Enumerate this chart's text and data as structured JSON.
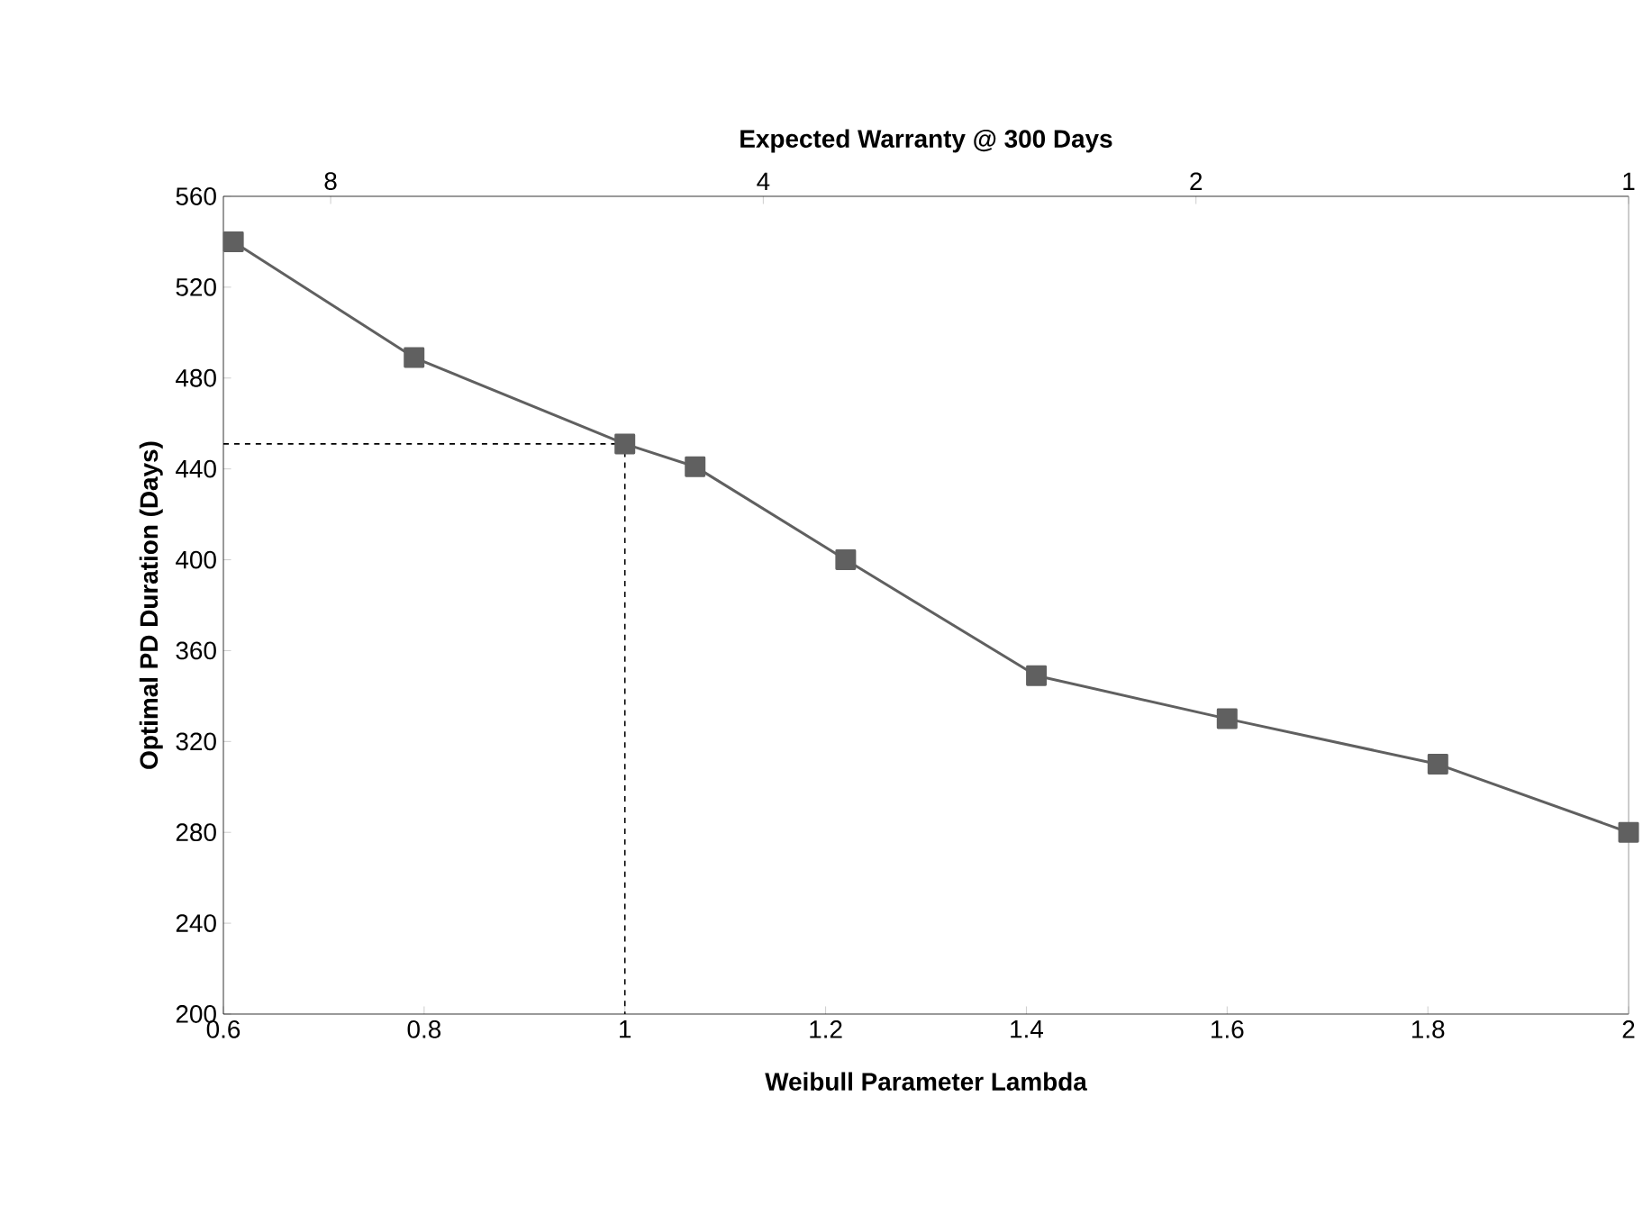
{
  "chart_data": {
    "type": "line",
    "xlabel": "Weibull Parameter  Lambda",
    "ylabel": "Optimal PD Duration (Days)",
    "x2label": "Expected Warranty @ 300 Days",
    "xlim": [
      0.6,
      2
    ],
    "xticks": [
      0.6,
      0.8,
      1,
      1.2,
      1.4,
      1.6,
      1.8,
      2
    ],
    "ylim": [
      200,
      560
    ],
    "yticks": [
      200,
      240,
      280,
      320,
      360,
      400,
      440,
      480,
      520,
      560
    ],
    "x2lim": [
      9.5,
      1
    ],
    "x2ticks": [
      8,
      4,
      2,
      1
    ],
    "log": "x2",
    "series": [
      {
        "color": "#606060",
        "marker": "square",
        "line_style": "solid",
        "x": [
          0.61,
          0.79,
          1.0,
          1.07,
          1.22,
          1.41,
          1.6,
          1.81,
          2.0
        ],
        "values": [
          540,
          489,
          451,
          441,
          400,
          349,
          330,
          310,
          280
        ]
      },
      {
        "color": "#000000",
        "marker": "none",
        "line_style": "dashed",
        "x": [
          0.6,
          1.0,
          1.0
        ],
        "values": [
          451,
          451,
          200
        ]
      }
    ]
  }
}
